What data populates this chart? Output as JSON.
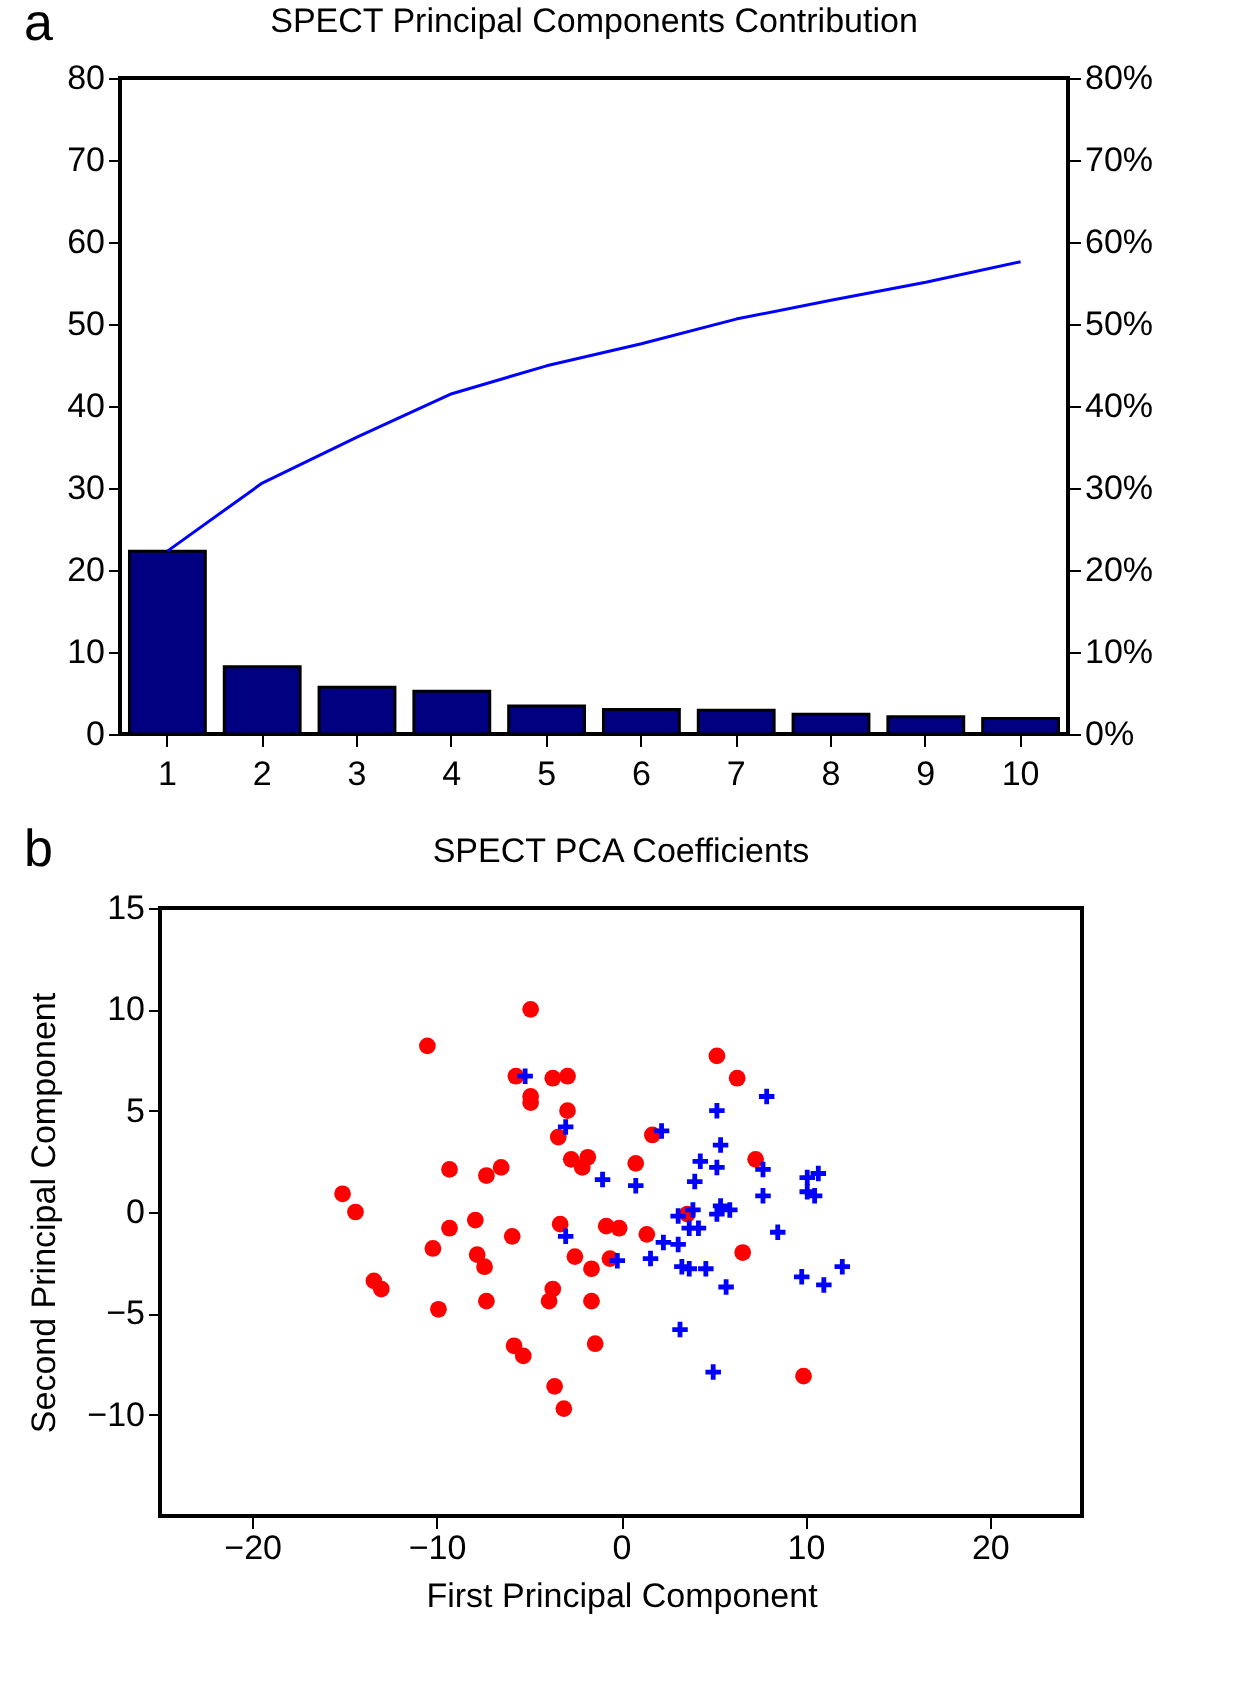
{
  "chart_data": [
    {
      "type": "bar",
      "title": "SPECT Principal Components Contribution",
      "annotations": [
        "a"
      ],
      "categories": [
        "1",
        "2",
        "3",
        "4",
        "5",
        "6",
        "7",
        "8",
        "9",
        "10"
      ],
      "series": [
        {
          "type": "bar",
          "color": "#000080",
          "values": [
            22.3,
            8.2,
            5.7,
            5.2,
            3.4,
            3.0,
            2.9,
            2.4,
            2.1,
            1.9
          ]
        },
        {
          "type": "line",
          "axis": "y2",
          "color": "#0000ff",
          "values": [
            22.3,
            30.6,
            36.2,
            41.5,
            44.9,
            47.6,
            50.6,
            52.9,
            55.1,
            57.6
          ]
        }
      ],
      "ylim": [
        0,
        80
      ],
      "yticks": [
        0,
        10,
        20,
        30,
        40,
        50,
        60,
        70,
        80
      ],
      "y2lim": [
        0,
        80
      ],
      "y2ticks": [
        {
          "value": 0,
          "label": "0%"
        },
        {
          "value": 10,
          "label": "10%"
        },
        {
          "value": 20,
          "label": "20%"
        },
        {
          "value": 30,
          "label": "30%"
        },
        {
          "value": 40,
          "label": "40%"
        },
        {
          "value": 50,
          "label": "50%"
        },
        {
          "value": 60,
          "label": "60%"
        },
        {
          "value": 70,
          "label": "70%"
        },
        {
          "value": 80,
          "label": "80%"
        }
      ]
    },
    {
      "type": "scatter",
      "title": "SPECT PCA Coefficients",
      "annotations": [
        "b"
      ],
      "xlabel": "First Principal Component",
      "ylabel": "Second Principal Component",
      "series": [
        {
          "color": "#ff0000",
          "marker": "circle",
          "x": [
            -15.1,
            -14.4,
            -10.5,
            -4.9,
            -9.3,
            -7.3,
            -6.5,
            -5.7,
            -4.9,
            -4.9,
            -3.7,
            -2.9,
            -2.9,
            -3.4,
            -2.7,
            -2.1,
            -1.8,
            0.8,
            1.7,
            5.2,
            6.3,
            7.3,
            3.6,
            6.6,
            9.9,
            -9.3,
            -7.9,
            -5.9,
            -10.2,
            -7.8,
            -7.4,
            -13.4,
            -13.0,
            -9.9,
            -7.3,
            -3.3,
            -2.5,
            -1.6,
            -0.8,
            -0.1,
            -0.6,
            1.4,
            -3.7,
            -3.9,
            -1.6,
            -1.4,
            -5.8,
            -5.3,
            -3.6,
            -3.1
          ],
          "values": [
            0.9,
            0,
            8.2,
            10.0,
            2.1,
            1.8,
            2.2,
            6.7,
            5.7,
            5.4,
            6.6,
            6.7,
            5.0,
            3.7,
            2.6,
            2.2,
            2.7,
            2.4,
            3.8,
            7.7,
            6.6,
            2.6,
            -0.1,
            -2.0,
            -8.1,
            -0.8,
            -0.4,
            -1.2,
            -1.8,
            -2.1,
            -2.7,
            -3.4,
            -3.8,
            -4.8,
            -4.4,
            -0.6,
            -2.2,
            -2.8,
            -0.7,
            -0.8,
            -2.3,
            -1.1,
            -3.8,
            -4.4,
            -4.4,
            -6.5,
            -6.6,
            -7.1,
            -8.6,
            -9.7
          ]
        },
        {
          "color": "#0000ff",
          "marker": "cross",
          "x": [
            -5.2,
            -3.0,
            2.2,
            7.9,
            5.2,
            5.4,
            4.3,
            5.2,
            7.7,
            -1.0,
            0.8,
            4.0,
            7.7,
            10.1,
            10.7,
            10.1,
            10.5,
            5.4,
            5.9,
            5.2,
            3.9,
            3.1,
            3.7,
            4.2,
            8.5,
            -3.0,
            2.3,
            3.1,
            -0.2,
            1.6,
            3.3,
            3.7,
            4.6,
            5.7,
            9.8,
            11.0,
            12.0,
            3.2,
            5.0
          ],
          "values": [
            6.7,
            4.2,
            4.0,
            5.7,
            5.0,
            3.3,
            2.5,
            2.2,
            2.1,
            1.6,
            1.3,
            1.5,
            0.8,
            1.7,
            1.9,
            1.0,
            0.8,
            0.3,
            0.1,
            -0.1,
            0.1,
            -0.2,
            -0.8,
            -0.8,
            -1.0,
            -1.2,
            -1.5,
            -1.6,
            -2.4,
            -2.3,
            -2.7,
            -2.8,
            -2.8,
            -3.7,
            -3.2,
            -3.6,
            -2.7,
            -5.8,
            -7.9
          ]
        }
      ],
      "xlim": [
        -25,
        25
      ],
      "xticks": [
        -20,
        -10,
        0,
        10,
        20
      ],
      "ylim": [
        -15,
        15
      ],
      "yticks": [
        -10,
        -5,
        0,
        5,
        10,
        15
      ]
    }
  ]
}
